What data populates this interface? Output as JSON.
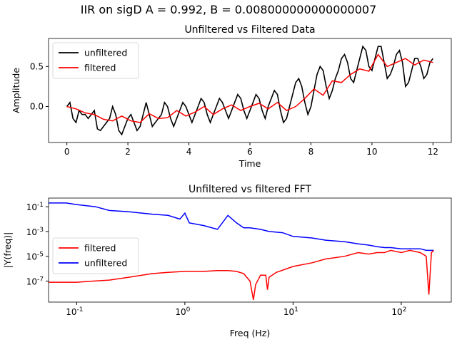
{
  "suptitle": "IIR on sigD  A = 0.992, B = 0.008000000000000007",
  "chart_data": [
    {
      "type": "line",
      "title": "Unfiltered vs Filtered Data",
      "xlabel": "Time",
      "ylabel": "Amplitude",
      "xlim": [
        -0.6,
        12.6
      ],
      "ylim": [
        -0.45,
        0.85
      ],
      "xticks": [
        0,
        2,
        4,
        6,
        8,
        10,
        12
      ],
      "yticks": [
        -0.0,
        0.5
      ],
      "legend": "upper-left",
      "series": [
        {
          "name": "unfiltered",
          "color": "#000000",
          "x": [
            0,
            0.1,
            0.2,
            0.3,
            0.4,
            0.5,
            0.6,
            0.7,
            0.8,
            0.9,
            1.0,
            1.1,
            1.2,
            1.3,
            1.4,
            1.5,
            1.6,
            1.7,
            1.8,
            1.9,
            2.0,
            2.1,
            2.2,
            2.3,
            2.4,
            2.5,
            2.6,
            2.7,
            2.8,
            2.9,
            3.0,
            3.1,
            3.2,
            3.3,
            3.4,
            3.5,
            3.6,
            3.7,
            3.8,
            3.9,
            4.0,
            4.1,
            4.2,
            4.3,
            4.4,
            4.5,
            4.6,
            4.7,
            4.8,
            4.9,
            5.0,
            5.1,
            5.2,
            5.3,
            5.4,
            5.5,
            5.6,
            5.7,
            5.8,
            5.9,
            6.0,
            6.1,
            6.2,
            6.3,
            6.4,
            6.5,
            6.6,
            6.7,
            6.8,
            6.9,
            7.0,
            7.1,
            7.2,
            7.3,
            7.4,
            7.5,
            7.6,
            7.7,
            7.8,
            7.9,
            8.0,
            8.1,
            8.2,
            8.3,
            8.4,
            8.5,
            8.6,
            8.7,
            8.8,
            8.9,
            9.0,
            9.1,
            9.2,
            9.3,
            9.4,
            9.5,
            9.6,
            9.7,
            9.8,
            9.9,
            10.0,
            10.1,
            10.2,
            10.3,
            10.4,
            10.5,
            10.6,
            10.7,
            10.8,
            10.9,
            11.0,
            11.1,
            11.2,
            11.3,
            11.4,
            11.5,
            11.6,
            11.7,
            11.8,
            11.9,
            12.0
          ],
          "values": [
            0.0,
            0.05,
            -0.15,
            -0.2,
            -0.05,
            -0.1,
            -0.1,
            -0.15,
            -0.1,
            -0.05,
            -0.28,
            -0.3,
            -0.25,
            -0.2,
            -0.15,
            0.0,
            -0.1,
            -0.3,
            -0.35,
            -0.25,
            -0.15,
            -0.1,
            -0.2,
            -0.3,
            -0.25,
            -0.1,
            0.05,
            -0.1,
            -0.25,
            -0.2,
            -0.15,
            -0.1,
            0.05,
            0.0,
            -0.15,
            -0.25,
            -0.15,
            -0.05,
            0.05,
            0.0,
            -0.1,
            -0.2,
            -0.1,
            0.0,
            0.1,
            0.05,
            -0.1,
            -0.2,
            -0.1,
            0.0,
            0.1,
            0.05,
            -0.05,
            -0.15,
            -0.05,
            0.05,
            0.15,
            0.1,
            -0.05,
            -0.15,
            -0.05,
            0.05,
            0.15,
            0.1,
            -0.05,
            -0.15,
            0.0,
            0.1,
            0.2,
            0.15,
            -0.05,
            -0.2,
            -0.15,
            0.0,
            0.15,
            0.3,
            0.35,
            0.25,
            0.05,
            -0.1,
            0.0,
            0.2,
            0.4,
            0.5,
            0.45,
            0.25,
            0.1,
            0.2,
            0.35,
            0.45,
            0.6,
            0.65,
            0.55,
            0.35,
            0.3,
            0.45,
            0.6,
            0.75,
            0.7,
            0.5,
            0.45,
            0.6,
            0.75,
            0.75,
            0.55,
            0.35,
            0.4,
            0.5,
            0.65,
            0.7,
            0.55,
            0.25,
            0.3,
            0.45,
            0.6,
            0.6,
            0.5,
            0.35,
            0.4,
            0.55,
            0.6
          ]
        },
        {
          "name": "filtered",
          "color": "#ff0000",
          "x": [
            0,
            0.3,
            0.6,
            0.9,
            1.2,
            1.5,
            1.8,
            2.1,
            2.4,
            2.7,
            3.0,
            3.3,
            3.6,
            3.9,
            4.2,
            4.5,
            4.8,
            5.1,
            5.4,
            5.7,
            6.0,
            6.3,
            6.6,
            6.9,
            7.2,
            7.5,
            7.8,
            8.1,
            8.4,
            8.7,
            9.0,
            9.3,
            9.6,
            9.9,
            10.2,
            10.5,
            10.8,
            11.1,
            11.4,
            11.7,
            12.0
          ],
          "values": [
            0.0,
            -0.03,
            -0.08,
            -0.1,
            -0.16,
            -0.18,
            -0.12,
            -0.18,
            -0.2,
            -0.09,
            -0.15,
            -0.14,
            -0.05,
            -0.12,
            -0.07,
            0.0,
            -0.1,
            -0.03,
            0.02,
            -0.05,
            0.0,
            0.04,
            -0.03,
            0.05,
            -0.05,
            0.0,
            0.1,
            0.22,
            0.14,
            0.32,
            0.3,
            0.4,
            0.47,
            0.44,
            0.65,
            0.5,
            0.55,
            0.6,
            0.52,
            0.58,
            0.55
          ]
        }
      ]
    },
    {
      "type": "line",
      "title": "Unfiltered vs filtered FFT",
      "xlabel": "Freq (Hz)",
      "ylabel": "|Y(freq)|",
      "xscale": "log",
      "yscale": "log",
      "xlim": [
        0.055,
        290
      ],
      "ylim": [
        2e-09,
        0.5
      ],
      "xtick_labels": [
        "10^-1",
        "10^0",
        "10^1",
        "10^2"
      ],
      "ytick_labels": [
        "10^-7",
        "10^-5",
        "10^-3",
        "10^-1"
      ],
      "legend": "center-left",
      "series": [
        {
          "name": "filtered",
          "color": "#ff0000",
          "x": [
            0.055,
            0.1,
            0.2,
            0.3,
            0.5,
            0.7,
            1.0,
            1.5,
            2.0,
            2.5,
            3.0,
            3.5,
            4.0,
            4.3,
            4.5,
            5.0,
            5.6,
            5.8,
            6.0,
            7.0,
            10,
            15,
            20,
            30,
            40,
            50,
            60,
            70,
            80,
            100,
            120,
            150,
            170,
            180,
            190,
            200
          ],
          "values": [
            8e-08,
            8e-08,
            1.2e-07,
            2e-07,
            4e-07,
            5e-07,
            6e-07,
            6e-07,
            7e-07,
            7e-07,
            6e-07,
            4e-07,
            1e-07,
            3e-09,
            5e-08,
            3e-07,
            3e-07,
            2e-08,
            2e-07,
            5e-07,
            1.5e-06,
            3e-06,
            6e-06,
            1e-05,
            2e-05,
            1.5e-05,
            2e-05,
            2e-05,
            3e-05,
            2e-05,
            3e-05,
            2e-05,
            1e-05,
            8e-09,
            2e-05,
            3e-05
          ]
        },
        {
          "name": "unfiltered",
          "color": "#0000ff",
          "x": [
            0.055,
            0.08,
            0.1,
            0.15,
            0.2,
            0.3,
            0.5,
            0.7,
            0.9,
            1.0,
            1.1,
            1.5,
            2.0,
            2.5,
            3.0,
            3.5,
            4.0,
            5.0,
            6.0,
            8.0,
            10,
            15,
            20,
            30,
            40,
            50,
            60,
            70,
            80,
            100,
            120,
            150,
            170,
            180,
            200
          ],
          "values": [
            0.2,
            0.2,
            0.15,
            0.1,
            0.05,
            0.04,
            0.025,
            0.02,
            0.01,
            0.03,
            0.005,
            0.003,
            0.0015,
            0.02,
            0.005,
            0.002,
            0.002,
            0.0015,
            0.001,
            0.0008,
            0.0004,
            0.0003,
            0.0002,
            0.00015,
            0.0001,
            8e-05,
            6e-05,
            5e-05,
            5e-05,
            4e-05,
            4e-05,
            4e-05,
            3e-05,
            3e-05,
            3e-05
          ]
        }
      ]
    }
  ]
}
